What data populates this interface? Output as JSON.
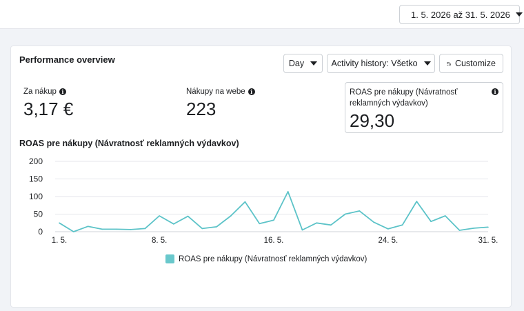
{
  "header": {
    "date_range": "1. 5. 2026 až 31. 5. 2026",
    "calendar_icon": "calendar-icon"
  },
  "card": {
    "title": "Performance overview",
    "controls": {
      "granularity": "Day",
      "activity_history": "Activity history: Všetko",
      "customize": "Customize"
    },
    "metrics": [
      {
        "label": "Za nákup",
        "value": "3,17 €"
      },
      {
        "label": "Nákupy na webe",
        "value": "223"
      },
      {
        "label": "ROAS pre nákupy (Návratnosť reklamných výdavkov)",
        "value": "29,30"
      }
    ]
  },
  "chart_data": {
    "type": "line",
    "title": "ROAS pre nákupy (Návratnosť reklamných výdavkov)",
    "x": [
      1,
      2,
      3,
      4,
      5,
      6,
      7,
      8,
      9,
      10,
      11,
      12,
      13,
      14,
      15,
      16,
      17,
      18,
      19,
      20,
      21,
      22,
      23,
      24,
      25,
      26,
      27,
      28,
      29,
      30,
      31
    ],
    "x_tick_labels": [
      {
        "x": 1,
        "label": "1. 5."
      },
      {
        "x": 8,
        "label": "8. 5."
      },
      {
        "x": 16,
        "label": "16. 5."
      },
      {
        "x": 24,
        "label": "24. 5."
      },
      {
        "x": 31,
        "label": "31. 5."
      }
    ],
    "y_ticks": [
      0,
      50,
      100,
      150,
      200
    ],
    "ylim": [
      0,
      200
    ],
    "series": [
      {
        "name": "ROAS pre nákupy (Návratnosť reklamných výdavkov)",
        "color": "#5cc3c8",
        "values": [
          25,
          0,
          15,
          7,
          7,
          6,
          9,
          45,
          22,
          44,
          9,
          14,
          45,
          85,
          23,
          33,
          114,
          5,
          25,
          19,
          50,
          59,
          27,
          8,
          19,
          86,
          29,
          45,
          4,
          10,
          13
        ]
      }
    ],
    "grid": true,
    "legend_position": "bottom"
  }
}
